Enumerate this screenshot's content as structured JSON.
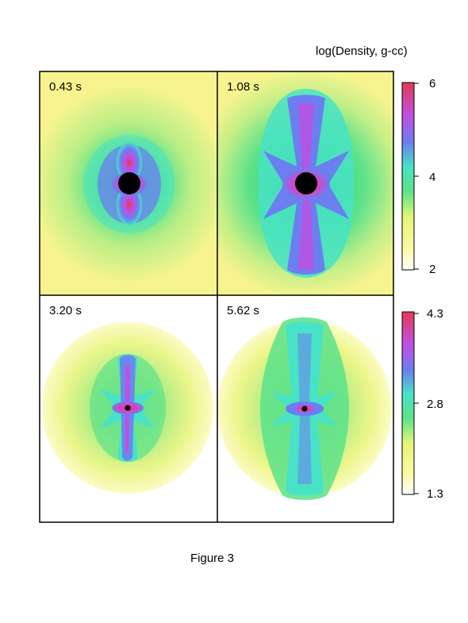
{
  "figure": {
    "colorbar_title": "log(Density, g-cc)",
    "caption": "Figure 3"
  },
  "panels": [
    {
      "label": "0.43 s"
    },
    {
      "label": "1.08 s"
    },
    {
      "label": "3.20 s"
    },
    {
      "label": "5.62 s"
    }
  ],
  "colorbars": [
    {
      "ticks": [
        "6",
        "4",
        "2"
      ]
    },
    {
      "ticks": [
        "4.3",
        "2.8",
        "1.3"
      ]
    }
  ],
  "colors": {
    "yellow": "#f7f48f",
    "green": "#5ce28a",
    "cyan": "#48e3c6",
    "blue": "#6b7ff0",
    "magenta": "#c04fe4",
    "pink": "#f0457c",
    "red": "#e33a57",
    "black": "#000000"
  }
}
